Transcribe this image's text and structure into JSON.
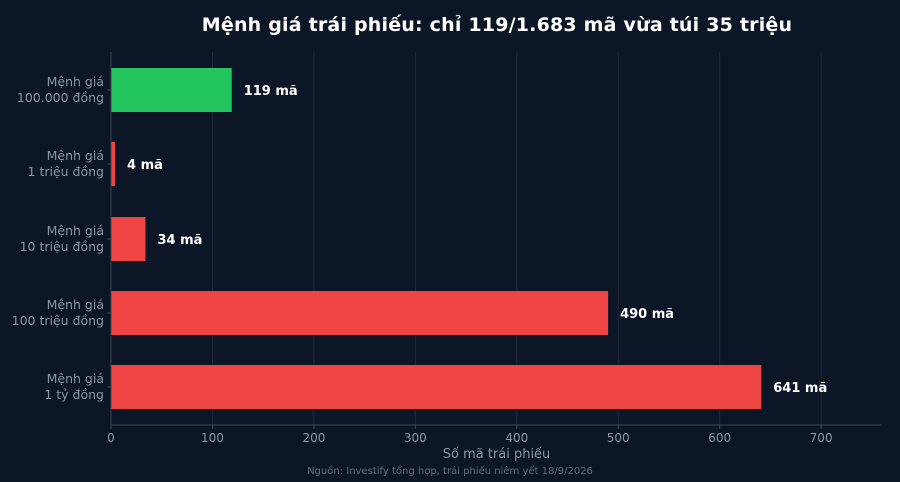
{
  "chart_data": {
    "type": "bar",
    "orientation": "horizontal",
    "title": "Mệnh giá trái phiếu: chỉ 119/1.683 mã vừa túi 35 triệu",
    "xlabel": "Số mã trái phiếu",
    "ylabel": "",
    "xlim": [
      0,
      760
    ],
    "x_ticks": [
      0,
      100,
      200,
      300,
      400,
      500,
      600,
      700
    ],
    "grid": "vertical",
    "categories": [
      [
        "Mệnh giá",
        "100.000 đồng"
      ],
      [
        "Mệnh giá",
        "1 triệu đồng"
      ],
      [
        "Mệnh giá",
        "10 triệu đồng"
      ],
      [
        "Mệnh giá",
        "100 triệu đồng"
      ],
      [
        "Mệnh giá",
        "1 tỷ đồng"
      ]
    ],
    "values": [
      119,
      4,
      34,
      490,
      641
    ],
    "data_labels": [
      "119 mã",
      "4 mã",
      "34 mã",
      "490 mã",
      "641 mã"
    ],
    "bar_colors": [
      "#22c55e",
      "#ef4444",
      "#ef4444",
      "#ef4444",
      "#ef4444"
    ],
    "source": "Nguồn: Investify tổng hợp, trái phiếu niêm yết 18/9/2026"
  },
  "colors": {
    "background": "#0d1626",
    "grid": "#1e2a3c",
    "axis": "#3a4556",
    "tick_text": "#8a94a6",
    "label_text": "#ffffff"
  }
}
